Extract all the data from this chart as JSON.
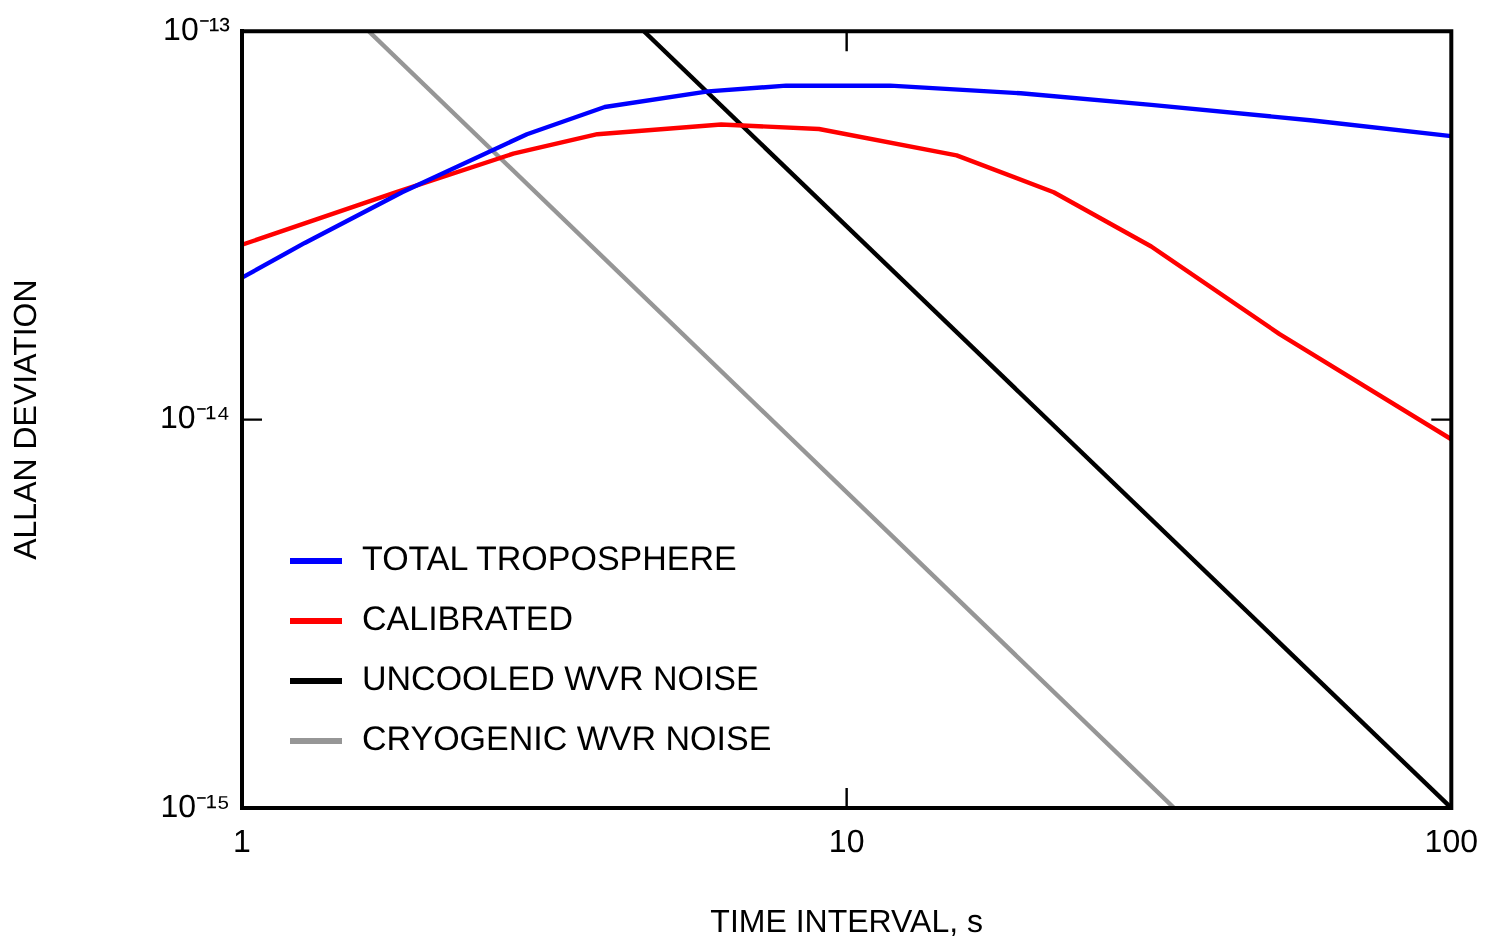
{
  "chart_data": {
    "type": "line",
    "xlabel": "TIME INTERVAL, s",
    "ylabel": "ALLAN DEVIATION",
    "log": "xy",
    "xlim": [
      1,
      100
    ],
    "ylim": [
      1e-15,
      1e-13
    ],
    "xticks": [
      1,
      10,
      100
    ],
    "yticks": [
      {
        "value": 1e-15,
        "label": "10⁻¹⁵"
      },
      {
        "value": 1e-14,
        "label": "10⁻¹⁴"
      },
      {
        "value": 1e-13,
        "label": "10⁻¹³"
      }
    ],
    "grid": false,
    "legend": "bottom left",
    "marker": "none",
    "line_style": "solid",
    "series": [
      {
        "name": "TOTAL TROPOSPHERE",
        "color": "#0000ff",
        "x": [
          1,
          1.27,
          1.84,
          2.96,
          3.98,
          5.9,
          7.94,
          11.8,
          19.4,
          31.9,
          59,
          100
        ],
        "values": [
          2.32e-14,
          2.85e-14,
          3.85e-14,
          5.43e-14,
          6.38e-14,
          7e-14,
          7.24e-14,
          7.24e-14,
          6.92e-14,
          6.46e-14,
          5.89e-14,
          5.37e-14
        ]
      },
      {
        "name": "CALIBRATED",
        "color": "#ff0000",
        "x": [
          1,
          1.8,
          2.81,
          3.87,
          6.2,
          9.0,
          15.2,
          22,
          31.9,
          52,
          100
        ],
        "values": [
          2.82e-14,
          3.85e-14,
          4.84e-14,
          5.43e-14,
          5.75e-14,
          5.6e-14,
          4.79e-14,
          3.85e-14,
          2.79e-14,
          1.66e-14,
          8.9e-15
        ]
      },
      {
        "name": "UNCOOLED WVR NOISE",
        "color": "#000000",
        "x": [
          4.62,
          100
        ],
        "values": [
          1e-13,
          1e-15
        ]
      },
      {
        "name": "CRYOGENIC WVR NOISE",
        "color": "#969696",
        "x": [
          1.62,
          34.8
        ],
        "values": [
          1e-13,
          1e-15
        ]
      }
    ]
  }
}
